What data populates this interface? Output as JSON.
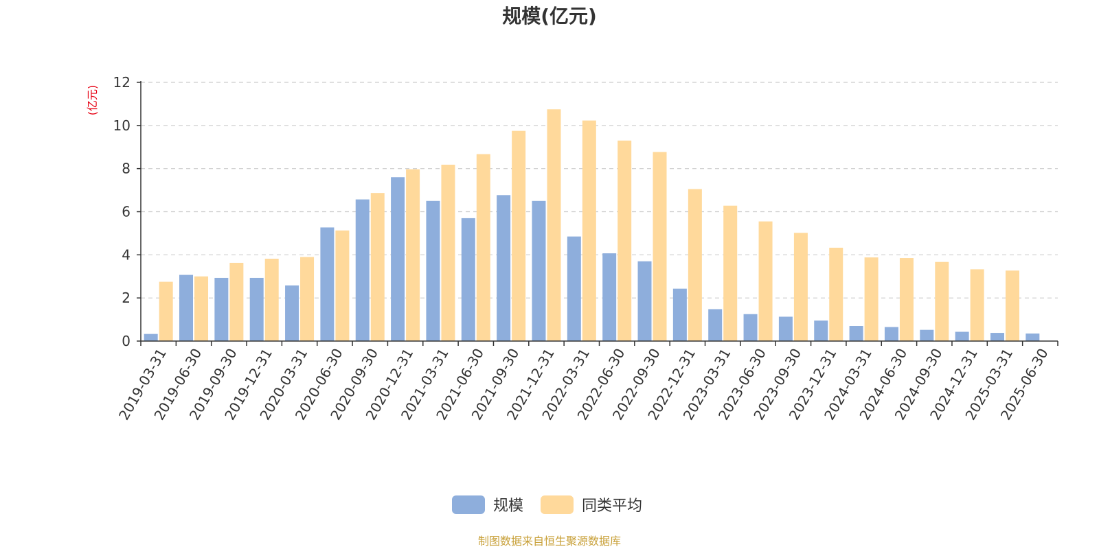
{
  "chart_data": {
    "type": "bar",
    "title": "规模(亿元)",
    "ylabel": "(亿元)",
    "xlabel": "",
    "ylim": [
      0,
      12
    ],
    "yticks": [
      0,
      2,
      4,
      6,
      8,
      10,
      12
    ],
    "grid": true,
    "legend_position": "bottom-center",
    "categories": [
      "2019-03-31",
      "2019-06-30",
      "2019-09-30",
      "2019-12-31",
      "2020-03-31",
      "2020-06-30",
      "2020-09-30",
      "2020-12-31",
      "2021-03-31",
      "2021-06-30",
      "2021-09-30",
      "2021-12-31",
      "2022-03-31",
      "2022-06-30",
      "2022-09-30",
      "2022-12-31",
      "2023-03-31",
      "2023-06-30",
      "2023-09-30",
      "2023-12-31",
      "2024-03-31",
      "2024-06-30",
      "2024-09-30",
      "2024-12-31",
      "2025-03-31",
      "2025-06-30"
    ],
    "series": [
      {
        "name": "规模",
        "color": "#8eaedc",
        "values": [
          0.33,
          3.07,
          2.93,
          2.93,
          2.58,
          5.27,
          6.57,
          7.6,
          6.5,
          5.7,
          6.77,
          6.5,
          4.85,
          4.07,
          3.7,
          2.43,
          1.48,
          1.25,
          1.13,
          0.95,
          0.7,
          0.65,
          0.52,
          0.43,
          0.38,
          0.35
        ]
      },
      {
        "name": "同类平均",
        "color": "#ffd99b",
        "values": [
          2.75,
          3.0,
          3.63,
          3.82,
          3.9,
          5.13,
          6.87,
          7.97,
          8.18,
          8.67,
          9.75,
          10.75,
          10.23,
          9.3,
          8.77,
          7.05,
          6.28,
          5.55,
          5.02,
          4.33,
          3.88,
          3.85,
          3.67,
          3.33,
          3.27,
          null
        ]
      }
    ],
    "source": "制图数据来自恒生聚源数据库"
  }
}
